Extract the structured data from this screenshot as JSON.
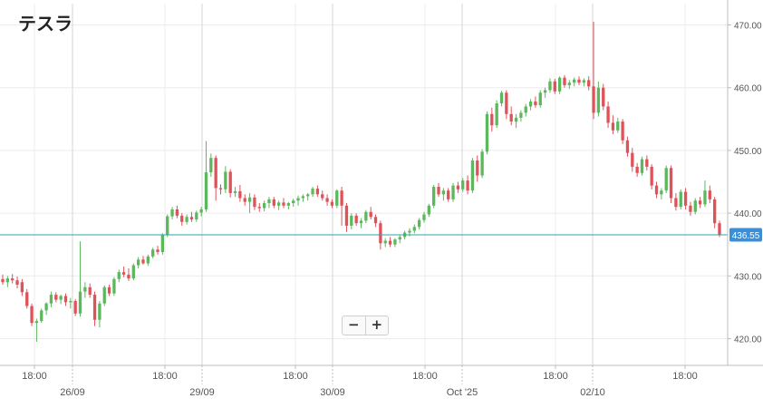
{
  "title": "テスラ",
  "zoom": {
    "minus_label": "−",
    "plus_label": "+"
  },
  "colors": {
    "up": "#5cb85c",
    "down": "#e0525a",
    "price_line": "#2aa6ad",
    "price_tag": "#3a8fd8"
  },
  "chart_data": {
    "type": "candlestick",
    "title": "テスラ",
    "ylim": [
      415,
      472
    ],
    "y_ticks": [
      420,
      430,
      440,
      450,
      460,
      470
    ],
    "y_tick_labels": [
      "420.00",
      "430.00",
      "440.00",
      "450.00",
      "460.00",
      "470.00"
    ],
    "current_price": 436.55,
    "current_price_label": "436.55",
    "x_major_labels": [
      "26/09",
      "29/09",
      "30/09",
      "Oct '25",
      "02/10"
    ],
    "x_minor_labels": [
      "18:00",
      "18:00",
      "18:00",
      "18:00",
      "18:00",
      "18:00"
    ],
    "grid": true,
    "candles": [
      {
        "o": 429.5,
        "h": 430.2,
        "l": 428.6,
        "c": 429.0
      },
      {
        "o": 429.0,
        "h": 430.0,
        "l": 428.2,
        "c": 429.6
      },
      {
        "o": 429.6,
        "h": 430.3,
        "l": 428.8,
        "c": 429.3
      },
      {
        "o": 429.3,
        "h": 429.9,
        "l": 428.0,
        "c": 428.6
      },
      {
        "o": 429.0,
        "h": 429.5,
        "l": 426.8,
        "c": 427.4
      },
      {
        "o": 427.4,
        "h": 427.9,
        "l": 424.8,
        "c": 425.2
      },
      {
        "o": 425.2,
        "h": 425.6,
        "l": 422.0,
        "c": 422.5
      },
      {
        "o": 422.5,
        "h": 423.2,
        "l": 419.5,
        "c": 422.8
      },
      {
        "o": 422.8,
        "h": 424.8,
        "l": 422.5,
        "c": 424.5
      },
      {
        "o": 424.5,
        "h": 425.8,
        "l": 423.8,
        "c": 425.6
      },
      {
        "o": 425.6,
        "h": 427.5,
        "l": 425.0,
        "c": 427.0
      },
      {
        "o": 427.0,
        "h": 427.4,
        "l": 425.8,
        "c": 426.2
      },
      {
        "o": 426.2,
        "h": 427.0,
        "l": 425.5,
        "c": 426.8
      },
      {
        "o": 426.8,
        "h": 427.2,
        "l": 425.2,
        "c": 425.8
      },
      {
        "o": 425.8,
        "h": 426.5,
        "l": 424.8,
        "c": 426.0
      },
      {
        "o": 426.0,
        "h": 426.3,
        "l": 423.6,
        "c": 424.0
      },
      {
        "o": 424.0,
        "h": 435.5,
        "l": 423.5,
        "c": 427.5
      },
      {
        "o": 427.5,
        "h": 429.0,
        "l": 426.5,
        "c": 428.2
      },
      {
        "o": 428.2,
        "h": 428.8,
        "l": 426.5,
        "c": 427.0
      },
      {
        "o": 427.0,
        "h": 427.5,
        "l": 422.0,
        "c": 423.0
      },
      {
        "o": 423.0,
        "h": 426.0,
        "l": 421.8,
        "c": 425.6
      },
      {
        "o": 425.6,
        "h": 428.5,
        "l": 425.2,
        "c": 428.2
      },
      {
        "o": 428.2,
        "h": 428.6,
        "l": 426.8,
        "c": 427.2
      },
      {
        "o": 427.2,
        "h": 429.8,
        "l": 426.8,
        "c": 429.5
      },
      {
        "o": 429.5,
        "h": 431.0,
        "l": 429.0,
        "c": 430.6
      },
      {
        "o": 430.6,
        "h": 431.5,
        "l": 429.8,
        "c": 430.2
      },
      {
        "o": 430.2,
        "h": 431.2,
        "l": 429.2,
        "c": 429.6
      },
      {
        "o": 429.6,
        "h": 432.0,
        "l": 429.3,
        "c": 431.7
      },
      {
        "o": 431.7,
        "h": 433.0,
        "l": 431.2,
        "c": 432.6
      },
      {
        "o": 432.6,
        "h": 433.2,
        "l": 431.8,
        "c": 432.0
      },
      {
        "o": 432.0,
        "h": 433.4,
        "l": 431.6,
        "c": 433.1
      },
      {
        "o": 433.1,
        "h": 434.5,
        "l": 432.8,
        "c": 434.2
      },
      {
        "o": 434.2,
        "h": 434.8,
        "l": 433.4,
        "c": 433.8
      },
      {
        "o": 433.8,
        "h": 436.8,
        "l": 433.4,
        "c": 436.5
      },
      {
        "o": 436.5,
        "h": 439.8,
        "l": 436.2,
        "c": 439.5
      },
      {
        "o": 439.5,
        "h": 441.0,
        "l": 439.0,
        "c": 440.6
      },
      {
        "o": 440.6,
        "h": 441.2,
        "l": 439.2,
        "c": 439.6
      },
      {
        "o": 439.6,
        "h": 440.0,
        "l": 438.0,
        "c": 438.6
      },
      {
        "o": 438.6,
        "h": 439.8,
        "l": 438.2,
        "c": 439.4
      },
      {
        "o": 439.4,
        "h": 440.2,
        "l": 438.6,
        "c": 439.0
      },
      {
        "o": 439.0,
        "h": 440.4,
        "l": 438.6,
        "c": 440.1
      },
      {
        "o": 440.1,
        "h": 441.0,
        "l": 439.5,
        "c": 440.6
      },
      {
        "o": 440.6,
        "h": 451.5,
        "l": 440.2,
        "c": 446.5
      },
      {
        "o": 446.5,
        "h": 449.5,
        "l": 445.8,
        "c": 448.8
      },
      {
        "o": 448.8,
        "h": 449.2,
        "l": 442.0,
        "c": 444.0
      },
      {
        "o": 444.0,
        "h": 444.6,
        "l": 443.0,
        "c": 443.8
      },
      {
        "o": 443.8,
        "h": 447.5,
        "l": 443.2,
        "c": 446.6
      },
      {
        "o": 446.6,
        "h": 447.0,
        "l": 442.5,
        "c": 443.2
      },
      {
        "o": 443.2,
        "h": 444.2,
        "l": 442.6,
        "c": 443.5
      },
      {
        "o": 443.5,
        "h": 444.5,
        "l": 441.8,
        "c": 442.4
      },
      {
        "o": 442.4,
        "h": 443.0,
        "l": 441.2,
        "c": 441.8
      },
      {
        "o": 441.8,
        "h": 443.2,
        "l": 440.0,
        "c": 442.5
      },
      {
        "o": 442.5,
        "h": 443.0,
        "l": 440.5,
        "c": 441.0
      },
      {
        "o": 441.0,
        "h": 441.6,
        "l": 440.2,
        "c": 440.8
      },
      {
        "o": 440.8,
        "h": 442.0,
        "l": 440.3,
        "c": 441.6
      },
      {
        "o": 441.6,
        "h": 442.6,
        "l": 440.8,
        "c": 442.2
      },
      {
        "o": 442.2,
        "h": 442.6,
        "l": 440.8,
        "c": 441.2
      },
      {
        "o": 441.2,
        "h": 442.0,
        "l": 440.5,
        "c": 441.7
      },
      {
        "o": 441.7,
        "h": 442.4,
        "l": 440.8,
        "c": 441.2
      },
      {
        "o": 441.2,
        "h": 441.8,
        "l": 440.6,
        "c": 441.6
      },
      {
        "o": 441.6,
        "h": 442.3,
        "l": 441.0,
        "c": 442.0
      },
      {
        "o": 442.0,
        "h": 442.8,
        "l": 441.2,
        "c": 442.4
      },
      {
        "o": 442.4,
        "h": 443.0,
        "l": 441.8,
        "c": 442.7
      },
      {
        "o": 442.7,
        "h": 443.2,
        "l": 442.0,
        "c": 443.0
      },
      {
        "o": 443.0,
        "h": 444.2,
        "l": 442.6,
        "c": 443.9
      },
      {
        "o": 443.9,
        "h": 444.4,
        "l": 442.6,
        "c": 443.0
      },
      {
        "o": 443.0,
        "h": 443.6,
        "l": 442.0,
        "c": 442.4
      },
      {
        "o": 442.4,
        "h": 443.0,
        "l": 441.2,
        "c": 441.8
      },
      {
        "o": 441.8,
        "h": 442.2,
        "l": 440.8,
        "c": 441.2
      },
      {
        "o": 441.2,
        "h": 443.8,
        "l": 440.8,
        "c": 443.6
      },
      {
        "o": 443.6,
        "h": 444.2,
        "l": 438.0,
        "c": 441.2
      },
      {
        "o": 441.2,
        "h": 441.6,
        "l": 437.0,
        "c": 438.0
      },
      {
        "o": 438.0,
        "h": 440.0,
        "l": 437.4,
        "c": 439.6
      },
      {
        "o": 439.6,
        "h": 440.0,
        "l": 438.0,
        "c": 438.4
      },
      {
        "o": 438.4,
        "h": 439.2,
        "l": 437.6,
        "c": 438.8
      },
      {
        "o": 438.8,
        "h": 440.5,
        "l": 438.4,
        "c": 440.2
      },
      {
        "o": 440.2,
        "h": 441.0,
        "l": 439.0,
        "c": 439.4
      },
      {
        "o": 439.4,
        "h": 439.8,
        "l": 437.8,
        "c": 438.4
      },
      {
        "o": 438.4,
        "h": 438.8,
        "l": 434.2,
        "c": 435.2
      },
      {
        "o": 435.2,
        "h": 436.0,
        "l": 434.6,
        "c": 435.6
      },
      {
        "o": 435.6,
        "h": 436.2,
        "l": 434.6,
        "c": 435.0
      },
      {
        "o": 435.0,
        "h": 436.0,
        "l": 434.6,
        "c": 435.8
      },
      {
        "o": 435.8,
        "h": 436.6,
        "l": 435.2,
        "c": 436.2
      },
      {
        "o": 436.2,
        "h": 437.2,
        "l": 435.8,
        "c": 436.9
      },
      {
        "o": 436.9,
        "h": 437.6,
        "l": 436.3,
        "c": 437.2
      },
      {
        "o": 437.2,
        "h": 438.2,
        "l": 436.8,
        "c": 437.8
      },
      {
        "o": 437.8,
        "h": 439.2,
        "l": 437.4,
        "c": 438.9
      },
      {
        "o": 438.9,
        "h": 440.2,
        "l": 438.5,
        "c": 439.8
      },
      {
        "o": 439.8,
        "h": 441.5,
        "l": 439.4,
        "c": 441.2
      },
      {
        "o": 441.2,
        "h": 444.5,
        "l": 440.8,
        "c": 444.2
      },
      {
        "o": 444.2,
        "h": 444.8,
        "l": 442.6,
        "c": 443.0
      },
      {
        "o": 443.0,
        "h": 444.0,
        "l": 442.0,
        "c": 443.6
      },
      {
        "o": 443.6,
        "h": 444.0,
        "l": 441.8,
        "c": 442.2
      },
      {
        "o": 442.2,
        "h": 444.8,
        "l": 441.8,
        "c": 444.4
      },
      {
        "o": 444.4,
        "h": 445.0,
        "l": 443.2,
        "c": 443.8
      },
      {
        "o": 443.8,
        "h": 445.6,
        "l": 443.4,
        "c": 445.2
      },
      {
        "o": 445.2,
        "h": 446.0,
        "l": 443.0,
        "c": 443.6
      },
      {
        "o": 443.6,
        "h": 448.8,
        "l": 443.2,
        "c": 448.4
      },
      {
        "o": 448.4,
        "h": 449.2,
        "l": 445.0,
        "c": 446.0
      },
      {
        "o": 446.0,
        "h": 450.2,
        "l": 445.6,
        "c": 449.8
      },
      {
        "o": 449.8,
        "h": 456.2,
        "l": 449.4,
        "c": 455.8
      },
      {
        "o": 455.8,
        "h": 456.8,
        "l": 453.0,
        "c": 454.0
      },
      {
        "o": 454.0,
        "h": 458.0,
        "l": 453.6,
        "c": 457.5
      },
      {
        "o": 457.5,
        "h": 459.5,
        "l": 457.0,
        "c": 459.2
      },
      {
        "o": 459.2,
        "h": 459.6,
        "l": 455.0,
        "c": 455.8
      },
      {
        "o": 455.8,
        "h": 457.0,
        "l": 454.0,
        "c": 454.6
      },
      {
        "o": 454.6,
        "h": 455.8,
        "l": 453.6,
        "c": 455.2
      },
      {
        "o": 455.2,
        "h": 456.4,
        "l": 454.6,
        "c": 456.0
      },
      {
        "o": 456.0,
        "h": 457.4,
        "l": 455.4,
        "c": 457.0
      },
      {
        "o": 457.0,
        "h": 458.2,
        "l": 456.4,
        "c": 457.8
      },
      {
        "o": 457.8,
        "h": 458.6,
        "l": 456.8,
        "c": 457.2
      },
      {
        "o": 457.2,
        "h": 459.6,
        "l": 456.8,
        "c": 459.2
      },
      {
        "o": 459.2,
        "h": 460.0,
        "l": 458.4,
        "c": 459.6
      },
      {
        "o": 459.6,
        "h": 461.5,
        "l": 459.2,
        "c": 461.0
      },
      {
        "o": 461.0,
        "h": 461.4,
        "l": 459.0,
        "c": 459.4
      },
      {
        "o": 459.4,
        "h": 461.8,
        "l": 459.0,
        "c": 461.6
      },
      {
        "o": 461.6,
        "h": 462.0,
        "l": 460.0,
        "c": 460.4
      },
      {
        "o": 460.4,
        "h": 461.2,
        "l": 459.8,
        "c": 460.8
      },
      {
        "o": 460.8,
        "h": 461.6,
        "l": 460.2,
        "c": 461.3
      },
      {
        "o": 461.3,
        "h": 461.8,
        "l": 460.4,
        "c": 460.8
      },
      {
        "o": 460.8,
        "h": 461.5,
        "l": 460.2,
        "c": 461.2
      },
      {
        "o": 461.2,
        "h": 461.8,
        "l": 459.6,
        "c": 460.2
      },
      {
        "o": 460.2,
        "h": 470.5,
        "l": 455.0,
        "c": 456.0
      },
      {
        "o": 456.0,
        "h": 461.0,
        "l": 455.4,
        "c": 460.0
      },
      {
        "o": 460.0,
        "h": 460.6,
        "l": 456.4,
        "c": 457.0
      },
      {
        "o": 457.0,
        "h": 457.8,
        "l": 453.6,
        "c": 454.4
      },
      {
        "o": 454.4,
        "h": 455.6,
        "l": 452.6,
        "c": 453.2
      },
      {
        "o": 453.2,
        "h": 455.2,
        "l": 452.8,
        "c": 454.6
      },
      {
        "o": 454.6,
        "h": 455.0,
        "l": 451.0,
        "c": 451.6
      },
      {
        "o": 451.6,
        "h": 452.2,
        "l": 449.0,
        "c": 449.6
      },
      {
        "o": 449.6,
        "h": 450.4,
        "l": 446.6,
        "c": 447.4
      },
      {
        "o": 447.4,
        "h": 448.0,
        "l": 445.8,
        "c": 446.4
      },
      {
        "o": 446.4,
        "h": 449.0,
        "l": 446.0,
        "c": 448.6
      },
      {
        "o": 448.6,
        "h": 449.2,
        "l": 446.8,
        "c": 447.4
      },
      {
        "o": 447.4,
        "h": 447.8,
        "l": 443.8,
        "c": 444.4
      },
      {
        "o": 444.4,
        "h": 445.0,
        "l": 442.4,
        "c": 443.0
      },
      {
        "o": 443.0,
        "h": 444.0,
        "l": 442.2,
        "c": 443.6
      },
      {
        "o": 443.6,
        "h": 447.6,
        "l": 443.2,
        "c": 447.2
      },
      {
        "o": 447.2,
        "h": 447.6,
        "l": 441.6,
        "c": 442.4
      },
      {
        "o": 442.4,
        "h": 443.2,
        "l": 440.4,
        "c": 441.0
      },
      {
        "o": 441.0,
        "h": 443.8,
        "l": 440.6,
        "c": 443.4
      },
      {
        "o": 443.4,
        "h": 444.0,
        "l": 440.6,
        "c": 441.2
      },
      {
        "o": 441.2,
        "h": 441.8,
        "l": 439.6,
        "c": 440.2
      },
      {
        "o": 440.2,
        "h": 442.4,
        "l": 439.8,
        "c": 442.0
      },
      {
        "o": 442.0,
        "h": 442.6,
        "l": 440.8,
        "c": 441.4
      },
      {
        "o": 441.4,
        "h": 445.2,
        "l": 441.0,
        "c": 443.6
      },
      {
        "o": 443.6,
        "h": 444.4,
        "l": 441.6,
        "c": 442.2
      },
      {
        "o": 442.2,
        "h": 442.6,
        "l": 437.6,
        "c": 438.4
      },
      {
        "o": 438.4,
        "h": 438.8,
        "l": 436.2,
        "c": 436.6
      }
    ]
  }
}
